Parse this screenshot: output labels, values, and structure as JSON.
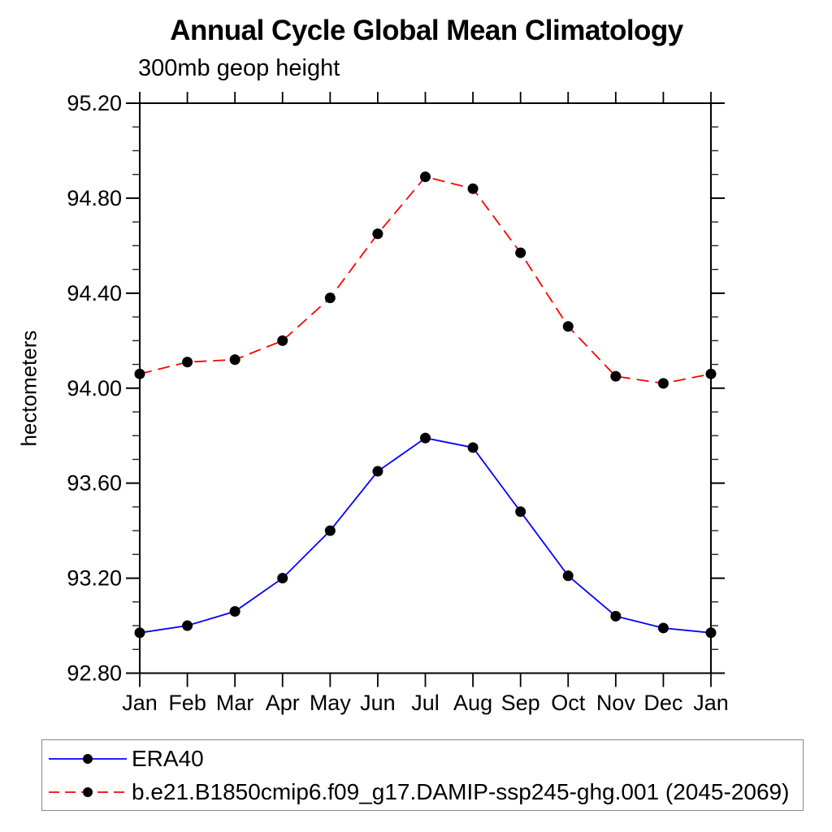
{
  "chart_data": {
    "type": "line",
    "title": "Annual Cycle Global Mean Climatology",
    "subtitle": "300mb geop height",
    "ylabel": "hectometers",
    "xlabel": "",
    "categories": [
      "Jan",
      "Feb",
      "Mar",
      "Apr",
      "May",
      "Jun",
      "Jul",
      "Aug",
      "Sep",
      "Oct",
      "Nov",
      "Dec",
      "Jan"
    ],
    "ylim": [
      92.8,
      95.2
    ],
    "ytick_major_step": 0.4,
    "ytick_minor_step": 0.1,
    "ytick_labels": [
      "92.80",
      "93.20",
      "93.60",
      "94.00",
      "94.40",
      "94.80",
      "95.20"
    ],
    "grid": false,
    "marker_color": "#000000",
    "series": [
      {
        "name": "ERA40",
        "color": "#0000ff",
        "dash": "solid",
        "marker": "filled-circle",
        "values": [
          92.97,
          93.0,
          93.06,
          93.2,
          93.4,
          93.65,
          93.79,
          93.75,
          93.48,
          93.21,
          93.04,
          92.99,
          92.97
        ]
      },
      {
        "name": "b.e21.B1850cmip6.f09_g17.DAMIP-ssp245-ghg.001 (2045-2069)",
        "color": "#ff0000",
        "dash": "dashed",
        "marker": "filled-circle",
        "values": [
          94.06,
          94.11,
          94.12,
          94.2,
          94.38,
          94.65,
          94.89,
          94.84,
          94.57,
          94.26,
          94.05,
          94.02,
          94.06
        ]
      }
    ],
    "legend_position": "bottom-left-box"
  }
}
